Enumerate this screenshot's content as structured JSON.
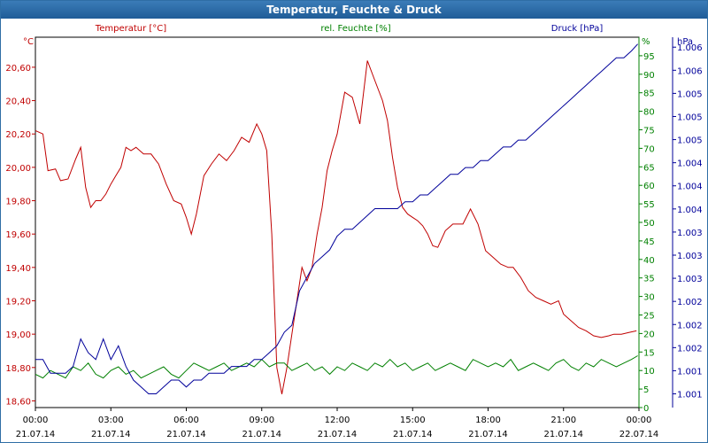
{
  "window": {
    "title": "Temperatur, Feuchte & Druck"
  },
  "chart_data": {
    "type": "line",
    "title": "Temperatur, Feuchte & Druck",
    "colors": {
      "temperature": "#c00000",
      "humidity": "#008000",
      "pressure": "#00009a",
      "axis": "#000000",
      "grid": "#000000"
    },
    "axes": {
      "temperature": {
        "label": "Temperatur [°C]",
        "unit": "°C",
        "ylim": [
          18.56,
          20.78
        ],
        "ticks": [
          "18,60",
          "18,80",
          "19,00",
          "19,20",
          "19,40",
          "19,60",
          "19,80",
          "20,00",
          "20,20",
          "20,40",
          "20,60"
        ]
      },
      "humidity": {
        "label": "rel. Feuchte [%]",
        "unit": "%",
        "ylim": [
          0,
          100
        ],
        "ticks": [
          "0",
          "5",
          "10",
          "15",
          "20",
          "25",
          "30",
          "35",
          "40",
          "45",
          "50",
          "55",
          "60",
          "65",
          "70",
          "75",
          "80",
          "85",
          "90",
          "95"
        ]
      },
      "pressure": {
        "label": "Druck [hPa]",
        "unit": "hPa",
        "ylim": [
          1000.9,
          1006.3
        ],
        "ticks": [
          "1.001",
          "1.001",
          "1.002",
          "1.002",
          "1.002",
          "1.003",
          "1.003",
          "1.003",
          "1.004",
          "1.004",
          "1.004",
          "1.005",
          "1.005",
          "1.005",
          "1.006",
          "1.006"
        ]
      }
    },
    "x_ticks": [
      {
        "time": "00:00",
        "date": "21.07.14"
      },
      {
        "time": "03:00",
        "date": "21.07.14"
      },
      {
        "time": "06:00",
        "date": "21.07.14"
      },
      {
        "time": "09:00",
        "date": "21.07.14"
      },
      {
        "time": "12:00",
        "date": "21.07.14"
      },
      {
        "time": "15:00",
        "date": "21.07.14"
      },
      {
        "time": "18:00",
        "date": "21.07.14"
      },
      {
        "time": "21:00",
        "date": "21.07.14"
      },
      {
        "time": "00:00",
        "date": "22.07.14"
      }
    ],
    "xlim": [
      0,
      24
    ],
    "series": [
      {
        "name": "Temperatur [°C]",
        "axis": "temperature",
        "x": [
          0,
          0.3,
          0.5,
          0.8,
          1,
          1.3,
          1.6,
          1.8,
          2,
          2.2,
          2.4,
          2.6,
          2.8,
          3,
          3.2,
          3.4,
          3.6,
          3.8,
          4,
          4.3,
          4.6,
          4.9,
          5.2,
          5.5,
          5.8,
          6,
          6.2,
          6.4,
          6.7,
          7,
          7.3,
          7.6,
          7.9,
          8.2,
          8.5,
          8.8,
          9,
          9.2,
          9.4,
          9.6,
          9.8,
          10,
          10.2,
          10.4,
          10.6,
          10.8,
          11,
          11.2,
          11.4,
          11.6,
          11.8,
          12,
          12.3,
          12.6,
          12.9,
          13.2,
          13.5,
          13.8,
          14,
          14.2,
          14.4,
          14.6,
          14.8,
          15,
          15.2,
          15.4,
          15.6,
          15.8,
          16,
          16.3,
          16.6,
          17,
          17.3,
          17.6,
          17.9,
          18.2,
          18.5,
          18.8,
          19,
          19.3,
          19.6,
          19.9,
          20.2,
          20.5,
          20.8,
          21,
          21.3,
          21.6,
          21.9,
          22.2,
          22.5,
          22.8,
          23,
          23.3,
          23.6,
          23.9
        ],
        "values": [
          20.22,
          20.2,
          19.98,
          19.99,
          19.92,
          19.93,
          20.05,
          20.12,
          19.88,
          19.76,
          19.8,
          19.8,
          19.84,
          19.9,
          19.95,
          20.0,
          20.12,
          20.1,
          20.12,
          20.08,
          20.08,
          20.02,
          19.9,
          19.8,
          19.78,
          19.7,
          19.6,
          19.72,
          19.95,
          20.02,
          20.08,
          20.04,
          20.1,
          20.18,
          20.15,
          20.26,
          20.2,
          20.1,
          19.6,
          18.8,
          18.64,
          18.8,
          19.0,
          19.2,
          19.4,
          19.32,
          19.4,
          19.6,
          19.76,
          19.98,
          20.1,
          20.2,
          20.45,
          20.42,
          20.26,
          20.64,
          20.52,
          20.4,
          20.28,
          20.06,
          19.88,
          19.76,
          19.72,
          19.7,
          19.68,
          19.65,
          19.6,
          19.53,
          19.52,
          19.62,
          19.66,
          19.66,
          19.75,
          19.66,
          19.5,
          19.46,
          19.42,
          19.4,
          19.4,
          19.34,
          19.26,
          19.22,
          19.2,
          19.18,
          19.2,
          19.12,
          19.08,
          19.04,
          19.02,
          18.99,
          18.98,
          18.99,
          19.0,
          19.0,
          19.01,
          19.02
        ]
      },
      {
        "name": "rel. Feuchte [%]",
        "axis": "humidity",
        "x": [
          0,
          0.3,
          0.6,
          0.9,
          1.2,
          1.5,
          1.8,
          2.1,
          2.4,
          2.7,
          3,
          3.3,
          3.6,
          3.9,
          4.2,
          4.5,
          4.8,
          5.1,
          5.4,
          5.7,
          6,
          6.3,
          6.6,
          6.9,
          7.2,
          7.5,
          7.8,
          8.1,
          8.4,
          8.7,
          9,
          9.3,
          9.6,
          9.9,
          10.2,
          10.5,
          10.8,
          11.1,
          11.4,
          11.7,
          12,
          12.3,
          12.6,
          12.9,
          13.2,
          13.5,
          13.8,
          14.1,
          14.4,
          14.7,
          15,
          15.3,
          15.6,
          15.9,
          16.2,
          16.5,
          16.8,
          17.1,
          17.4,
          17.7,
          18,
          18.3,
          18.6,
          18.9,
          19.2,
          19.5,
          19.8,
          20.1,
          20.4,
          20.7,
          21,
          21.3,
          21.6,
          21.9,
          22.2,
          22.5,
          22.8,
          23.1,
          23.4,
          23.7,
          23.95
        ],
        "values": [
          9,
          8,
          10,
          9,
          8,
          11,
          10,
          12,
          9,
          8,
          10,
          11,
          9,
          10,
          8,
          9,
          10,
          11,
          9,
          8,
          10,
          12,
          11,
          10,
          11,
          12,
          10,
          11,
          12,
          11,
          13,
          11,
          12,
          12,
          10,
          11,
          12,
          10,
          11,
          9,
          11,
          10,
          12,
          11,
          10,
          12,
          11,
          13,
          11,
          12,
          10,
          11,
          12,
          10,
          11,
          12,
          11,
          10,
          13,
          12,
          11,
          12,
          11,
          13,
          10,
          11,
          12,
          11,
          10,
          12,
          13,
          11,
          10,
          12,
          11,
          13,
          12,
          11,
          12,
          13,
          14
        ]
      },
      {
        "name": "Druck [hPa]",
        "axis": "pressure",
        "x": [
          0,
          0.3,
          0.6,
          0.9,
          1.2,
          1.5,
          1.8,
          2.1,
          2.4,
          2.7,
          3,
          3.3,
          3.6,
          3.9,
          4.2,
          4.5,
          4.8,
          5.1,
          5.4,
          5.7,
          6,
          6.3,
          6.6,
          6.9,
          7.2,
          7.5,
          7.8,
          8.1,
          8.4,
          8.7,
          9,
          9.3,
          9.6,
          9.9,
          10.2,
          10.5,
          10.8,
          11.1,
          11.4,
          11.7,
          12,
          12.3,
          12.6,
          12.9,
          13.2,
          13.5,
          13.8,
          14.1,
          14.4,
          14.7,
          15,
          15.3,
          15.6,
          15.9,
          16.2,
          16.5,
          16.8,
          17.1,
          17.4,
          17.7,
          18,
          18.3,
          18.6,
          18.9,
          19.2,
          19.5,
          19.8,
          20.1,
          20.4,
          20.7,
          21,
          21.3,
          21.6,
          21.9,
          22.2,
          22.5,
          22.8,
          23.1,
          23.4,
          23.7,
          23.95
        ],
        "values": [
          1001.6,
          1001.6,
          1001.4,
          1001.4,
          1001.4,
          1001.5,
          1001.9,
          1001.7,
          1001.6,
          1001.9,
          1001.6,
          1001.8,
          1001.5,
          1001.3,
          1001.2,
          1001.1,
          1001.1,
          1001.2,
          1001.3,
          1001.3,
          1001.2,
          1001.3,
          1001.3,
          1001.4,
          1001.4,
          1001.4,
          1001.5,
          1001.5,
          1001.5,
          1001.6,
          1001.6,
          1001.7,
          1001.8,
          1002.0,
          1002.1,
          1002.6,
          1002.8,
          1003.0,
          1003.1,
          1003.2,
          1003.4,
          1003.5,
          1003.5,
          1003.6,
          1003.7,
          1003.8,
          1003.8,
          1003.8,
          1003.8,
          1003.9,
          1003.9,
          1004.0,
          1004.0,
          1004.1,
          1004.2,
          1004.3,
          1004.3,
          1004.4,
          1004.4,
          1004.5,
          1004.5,
          1004.6,
          1004.7,
          1004.7,
          1004.8,
          1004.8,
          1004.9,
          1005.0,
          1005.1,
          1005.2,
          1005.3,
          1005.4,
          1005.5,
          1005.6,
          1005.7,
          1005.8,
          1005.9,
          1006.0,
          1006.0,
          1006.1,
          1006.2
        ]
      }
    ]
  }
}
